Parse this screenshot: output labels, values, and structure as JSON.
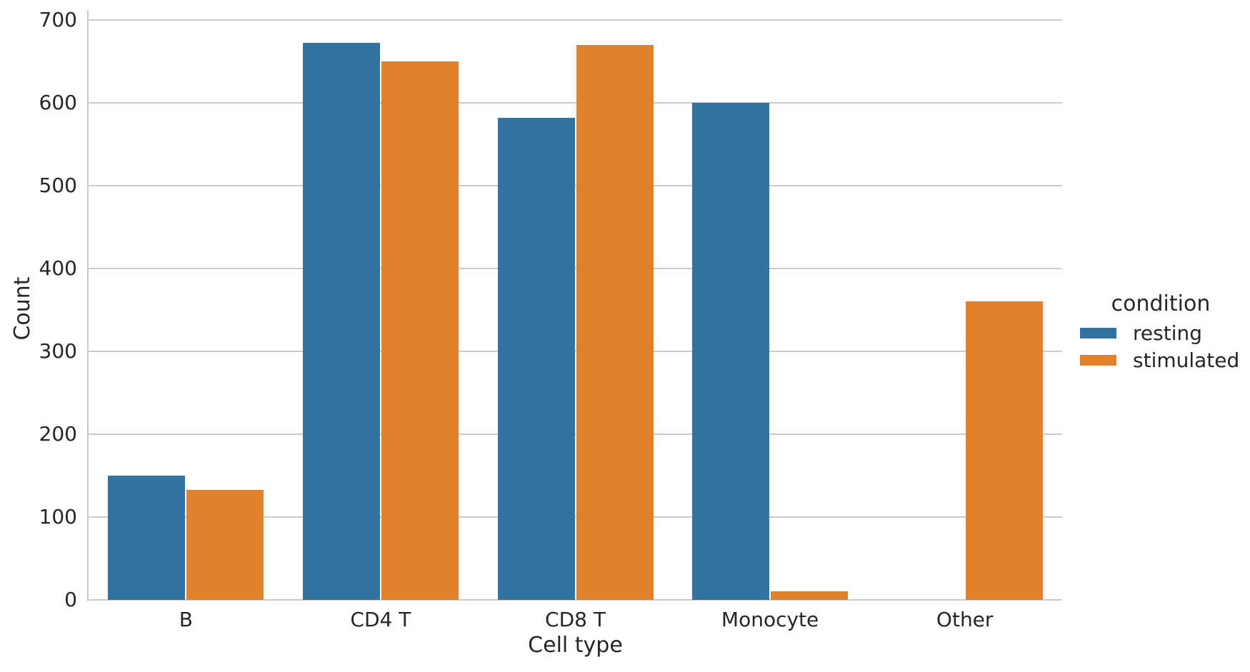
{
  "chart_data": {
    "type": "bar",
    "title": "",
    "xlabel": "Cell type",
    "ylabel": "Count",
    "categories": [
      "B",
      "CD4 T",
      "CD8 T",
      "Monocyte",
      "Other"
    ],
    "series": [
      {
        "name": "resting",
        "color": "#3274A1",
        "values": [
          150,
          672,
          582,
          600,
          0
        ]
      },
      {
        "name": "stimulated",
        "color": "#E1812C",
        "values": [
          133,
          650,
          670,
          10,
          360
        ]
      }
    ],
    "ylim": [
      0,
      700
    ],
    "yticks": [
      0,
      100,
      200,
      300,
      400,
      500,
      600,
      700
    ],
    "grid": "horizontal",
    "legend": {
      "title": "condition",
      "position": "right-center"
    }
  },
  "legend": {
    "title": "condition",
    "items": [
      {
        "label": "resting",
        "color": "#3274A1"
      },
      {
        "label": "stimulated",
        "color": "#E1812C"
      }
    ]
  },
  "style": {
    "grid_color": "#cbcbcb",
    "text_color": "#262626",
    "background": "#ffffff"
  }
}
